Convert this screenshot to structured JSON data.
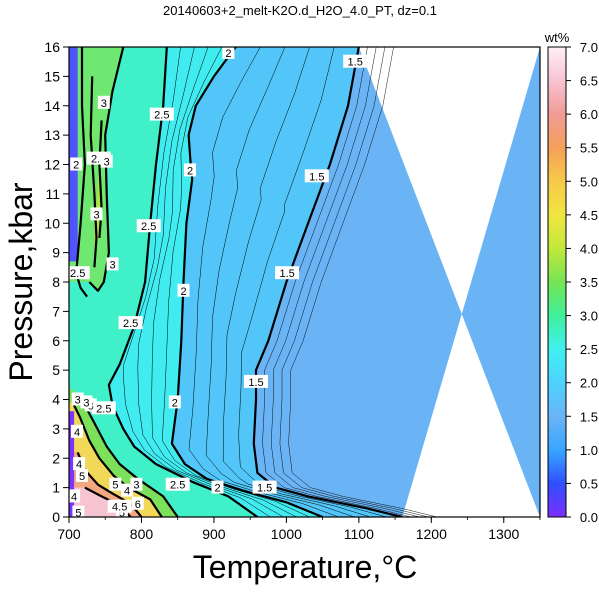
{
  "chart_data": {
    "type": "heatmap",
    "title": "20140603+2_melt-K2O.d_H2O_4.0_PT, dz=0.1",
    "xlabel": "Temperature,°C",
    "ylabel": "Pressure,kbar",
    "xlim": [
      700,
      1350
    ],
    "ylim": [
      0,
      16
    ],
    "x_ticks": [
      700,
      800,
      900,
      1000,
      1100,
      1200,
      1300
    ],
    "y_ticks": [
      0,
      1,
      2,
      3,
      4,
      5,
      6,
      7,
      8,
      9,
      10,
      11,
      12,
      13,
      14,
      15,
      16
    ],
    "colorbar": {
      "label": "wt%",
      "range": [
        0,
        7
      ],
      "ticks": [
        "0.0",
        "0.5",
        "1.0",
        "1.5",
        "2.0",
        "2.5",
        "3.0",
        "3.5",
        "4.0",
        "4.5",
        "5.0",
        "5.5",
        "6.0",
        "6.5",
        "7.0"
      ],
      "colors": [
        "#7b2fff",
        "#2f4fff",
        "#38a6ff",
        "#6ab4f6",
        "#4dd2ff",
        "#41f0f0",
        "#3ff09a",
        "#76e455",
        "#c2e83a",
        "#f0e640",
        "#f7c94a",
        "#f5a05a",
        "#f19b97",
        "#f7c4d2",
        "#fff0f6"
      ]
    },
    "contours": [
      {
        "level": "1.5",
        "points": [
          [
            1100,
            16
          ],
          [
            1085,
            14
          ],
          [
            1060,
            12
          ],
          [
            1030,
            10
          ],
          [
            1000,
            8
          ],
          [
            975,
            6
          ],
          [
            958,
            5
          ],
          [
            958,
            4
          ],
          [
            955,
            2.5
          ],
          [
            960,
            1.5
          ],
          [
            985,
            1
          ],
          [
            1030,
            0.7
          ],
          [
            1110,
            0.3
          ],
          [
            1160,
            0
          ]
        ]
      },
      {
        "level": "2",
        "points": [
          [
            930,
            16
          ],
          [
            900,
            15
          ],
          [
            875,
            14
          ],
          [
            865,
            13
          ],
          [
            868,
            12
          ],
          [
            870,
            11.5
          ],
          [
            862,
            10
          ],
          [
            858,
            8
          ],
          [
            855,
            6
          ],
          [
            850,
            4
          ],
          [
            842,
            2.5
          ],
          [
            860,
            1.8
          ],
          [
            890,
            1.3
          ],
          [
            940,
            0.9
          ],
          [
            1000,
            0.5
          ],
          [
            1050,
            0
          ]
        ]
      },
      {
        "level": "2.5",
        "points": [
          [
            835,
            16
          ],
          [
            830,
            14
          ],
          [
            820,
            12
          ],
          [
            812,
            10
          ],
          [
            805,
            8
          ],
          [
            790,
            6.5
          ],
          [
            770,
            5.2
          ],
          [
            755,
            4.5
          ],
          [
            760,
            3.8
          ],
          [
            775,
            3
          ],
          [
            790,
            2.4
          ],
          [
            820,
            1.8
          ],
          [
            870,
            1.2
          ],
          [
            920,
            0.7
          ],
          [
            960,
            0
          ]
        ]
      },
      {
        "level": "2.5",
        "points": [
          [
            718,
            16
          ],
          [
            718,
            14
          ],
          [
            722,
            12
          ],
          [
            716,
            10
          ],
          [
            710,
            8.3
          ],
          [
            716,
            7.8
          ],
          [
            725,
            7.5
          ]
        ]
      },
      {
        "level": "3",
        "points": [
          [
            775,
            16
          ],
          [
            760,
            14.5
          ],
          [
            750,
            13
          ],
          [
            752,
            11
          ],
          [
            755,
            9
          ],
          [
            748,
            8
          ],
          [
            740,
            7.7
          ],
          [
            728,
            8
          ]
        ]
      },
      {
        "level": "3",
        "points": [
          [
            732,
            15
          ],
          [
            730,
            13
          ],
          [
            735,
            11
          ],
          [
            738,
            9.5
          ],
          [
            735,
            8.5
          ]
        ]
      },
      {
        "level": "3.5",
        "points": [
          [
            745,
            13.5
          ],
          [
            742,
            12
          ],
          [
            745,
            10.5
          ],
          [
            742,
            9.5
          ]
        ]
      },
      {
        "level": "3",
        "points": [
          [
            712,
            4.2
          ],
          [
            722,
            3.8
          ],
          [
            735,
            3.2
          ],
          [
            752,
            2.4
          ],
          [
            770,
            1.8
          ],
          [
            795,
            1.3
          ],
          [
            830,
            0.7
          ],
          [
            850,
            0
          ]
        ]
      },
      {
        "level": "4",
        "points": [
          [
            705,
            3.9
          ],
          [
            715,
            3.4
          ],
          [
            728,
            2.6
          ],
          [
            742,
            2
          ],
          [
            762,
            1.4
          ],
          [
            782,
            1
          ],
          [
            812,
            0.6
          ],
          [
            828,
            0
          ]
        ]
      },
      {
        "level": "5",
        "points": [
          [
            712,
            2.2
          ],
          [
            722,
            1.6
          ],
          [
            740,
            1.1
          ],
          [
            760,
            0.8
          ],
          [
            785,
            0.45
          ],
          [
            800,
            0
          ]
        ]
      },
      {
        "level": "6",
        "points": [
          [
            722,
            1
          ],
          [
            745,
            0.7
          ],
          [
            770,
            0.4
          ],
          [
            785,
            0
          ]
        ]
      }
    ],
    "contour_labels": [
      {
        "text": "1.5",
        "x": 1095,
        "y": 15.5
      },
      {
        "text": "1.5",
        "x": 1042,
        "y": 11.6
      },
      {
        "text": "1.5",
        "x": 1001,
        "y": 8.3
      },
      {
        "text": "1.5",
        "x": 958,
        "y": 4.6
      },
      {
        "text": "1.5",
        "x": 970,
        "y": 1
      },
      {
        "text": "2",
        "x": 920,
        "y": 15.8
      },
      {
        "text": "2",
        "x": 867,
        "y": 11.8
      },
      {
        "text": "2",
        "x": 858,
        "y": 7.7
      },
      {
        "text": "2",
        "x": 846,
        "y": 3.9
      },
      {
        "text": "2",
        "x": 905,
        "y": 1
      },
      {
        "text": "2.5",
        "x": 828,
        "y": 13.7
      },
      {
        "text": "2.5",
        "x": 810,
        "y": 9.9
      },
      {
        "text": "2.5",
        "x": 785,
        "y": 6.6
      },
      {
        "text": "2.5",
        "x": 748,
        "y": 3.7
      },
      {
        "text": "2.5",
        "x": 850,
        "y": 1.1
      },
      {
        "text": "2.5",
        "x": 741,
        "y": 12.2
      },
      {
        "text": "2.5",
        "x": 712,
        "y": 8.3
      },
      {
        "text": "3",
        "x": 748,
        "y": 14.1
      },
      {
        "text": "3",
        "x": 752,
        "y": 12.1
      },
      {
        "text": "3",
        "x": 738,
        "y": 10.3
      },
      {
        "text": "3",
        "x": 760,
        "y": 8.6
      },
      {
        "text": "3",
        "x": 730,
        "y": 3.8
      },
      {
        "text": "2",
        "x": 710,
        "y": 12
      },
      {
        "text": "3",
        "x": 712,
        "y": 4
      },
      {
        "text": "3",
        "x": 724,
        "y": 3.9
      },
      {
        "text": "4",
        "x": 711,
        "y": 2.9
      },
      {
        "text": "4",
        "x": 714,
        "y": 1.8
      },
      {
        "text": "5",
        "x": 718,
        "y": 1.4
      },
      {
        "text": "4",
        "x": 707,
        "y": 0.7
      },
      {
        "text": "5",
        "x": 713,
        "y": 0.15
      },
      {
        "text": "5",
        "x": 773,
        "y": 0.15
      },
      {
        "text": "5",
        "x": 764,
        "y": 1.1
      },
      {
        "text": "4",
        "x": 780,
        "y": 0.9
      },
      {
        "text": "6",
        "x": 795,
        "y": 0.45
      },
      {
        "text": "3",
        "x": 793,
        "y": 1.1
      },
      {
        "text": "4.5",
        "x": 770,
        "y": 0.35
      }
    ]
  },
  "colors": {
    "axis": "#000000",
    "thin_contour": "#000000",
    "background": "#ffffff"
  }
}
